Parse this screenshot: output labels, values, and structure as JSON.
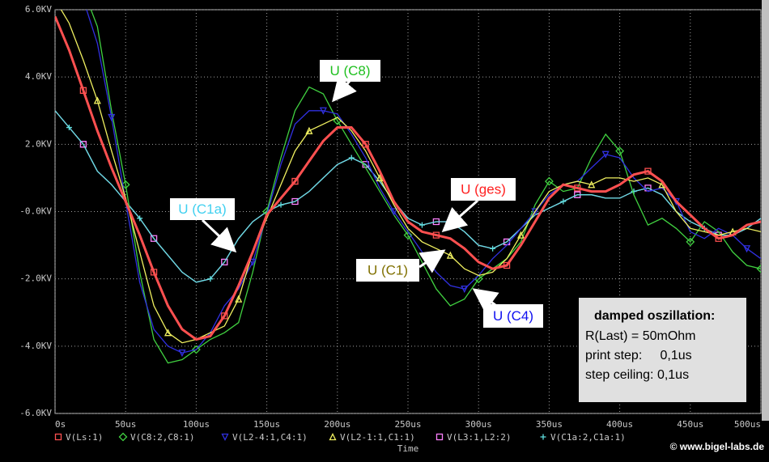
{
  "chart_data": {
    "type": "line",
    "x_label": "Time",
    "x": [
      0,
      10,
      20,
      30,
      40,
      50,
      60,
      70,
      80,
      90,
      100,
      110,
      120,
      130,
      140,
      150,
      160,
      170,
      180,
      190,
      200,
      210,
      220,
      230,
      240,
      250,
      260,
      270,
      280,
      290,
      300,
      310,
      320,
      330,
      340,
      350,
      360,
      370,
      380,
      390,
      400,
      410,
      420,
      430,
      440,
      450,
      460,
      470,
      480,
      490,
      500
    ],
    "xlim": [
      0,
      500
    ],
    "xticks": [
      {
        "value": 0,
        "label": "0s"
      },
      {
        "value": 50,
        "label": "50us"
      },
      {
        "value": 100,
        "label": "100us"
      },
      {
        "value": 150,
        "label": "150us"
      },
      {
        "value": 200,
        "label": "200us"
      },
      {
        "value": 250,
        "label": "250us"
      },
      {
        "value": 300,
        "label": "300us"
      },
      {
        "value": 350,
        "label": "350us"
      },
      {
        "value": 400,
        "label": "400us"
      },
      {
        "value": 450,
        "label": "450us"
      },
      {
        "value": 500,
        "label": "500us"
      }
    ],
    "ylim": [
      -6,
      6
    ],
    "yticks": [
      {
        "value": 6,
        "label": "6.0KV"
      },
      {
        "value": 4,
        "label": "4.0KV"
      },
      {
        "value": 2,
        "label": "2.0KV"
      },
      {
        "value": 0,
        "label": "-0.0KV"
      },
      {
        "value": -2,
        "label": "-2.0KV"
      },
      {
        "value": -4,
        "label": "-4.0KV"
      },
      {
        "value": -6,
        "label": "-6.0KV"
      }
    ],
    "grid": true,
    "series": [
      {
        "name": "V(L3:1,L2:2)",
        "color": "#ff80ff",
        "marker": "square",
        "values": [
          3.0,
          2.5,
          2.0,
          1.2,
          0.8,
          0.3,
          -0.2,
          -0.8,
          -1.3,
          -1.8,
          -2.1,
          -2.0,
          -1.5,
          -0.8,
          -0.3,
          0.0,
          0.2,
          0.3,
          0.6,
          1.0,
          1.4,
          1.6,
          1.4,
          0.9,
          0.3,
          -0.2,
          -0.4,
          -0.3,
          -0.3,
          -0.6,
          -1.0,
          -1.1,
          -0.9,
          -0.5,
          -0.1,
          0.1,
          0.3,
          0.5,
          0.5,
          0.4,
          0.4,
          0.6,
          0.7,
          0.5,
          0.0,
          -0.3,
          -0.5,
          -0.7,
          -0.7,
          -0.5,
          -0.2
        ]
      },
      {
        "name": "V(C1a:2,C1a:1)",
        "color": "#60e0e0",
        "marker": "plus",
        "values": [
          3.0,
          2.5,
          2.0,
          1.2,
          0.8,
          0.3,
          -0.2,
          -0.8,
          -1.3,
          -1.8,
          -2.1,
          -2.0,
          -1.5,
          -0.8,
          -0.3,
          0.0,
          0.2,
          0.3,
          0.6,
          1.0,
          1.4,
          1.6,
          1.4,
          0.9,
          0.3,
          -0.2,
          -0.4,
          -0.3,
          -0.3,
          -0.6,
          -1.0,
          -1.1,
          -0.9,
          -0.5,
          -0.1,
          0.1,
          0.3,
          0.5,
          0.5,
          0.4,
          0.4,
          0.6,
          0.7,
          0.5,
          0.0,
          -0.3,
          -0.5,
          -0.7,
          -0.7,
          -0.5,
          -0.2
        ]
      },
      {
        "name": "V(C8:2,C8:1)",
        "color": "#40d040",
        "marker": "diamond",
        "values": [
          6.4,
          6.6,
          6.6,
          5.5,
          3.0,
          0.8,
          -1.8,
          -3.8,
          -4.5,
          -4.4,
          -4.1,
          -3.8,
          -3.6,
          -3.3,
          -1.8,
          0.0,
          1.6,
          3.0,
          3.7,
          3.5,
          2.7,
          2.0,
          1.3,
          0.6,
          -0.1,
          -0.7,
          -1.5,
          -2.3,
          -2.8,
          -2.6,
          -2.0,
          -1.7,
          -1.4,
          -0.9,
          0.2,
          0.9,
          0.6,
          0.7,
          1.6,
          2.3,
          1.8,
          0.5,
          -0.4,
          -0.2,
          -0.5,
          -0.9,
          -0.3,
          -0.6,
          -1.2,
          -1.6,
          -1.7
        ]
      },
      {
        "name": "V(L2-4:1,C4:1)",
        "color": "#3030e0",
        "marker": "tri-down",
        "values": [
          6.6,
          6.6,
          6.3,
          5.0,
          2.8,
          0.3,
          -2.1,
          -3.5,
          -4.0,
          -4.2,
          -4.1,
          -3.6,
          -2.8,
          -2.3,
          -1.5,
          -0.1,
          1.4,
          2.6,
          3.0,
          3.0,
          2.9,
          2.3,
          1.6,
          0.7,
          0.0,
          -0.6,
          -1.2,
          -1.8,
          -2.2,
          -2.3,
          -1.9,
          -1.4,
          -1.0,
          -0.5,
          0.0,
          0.5,
          0.8,
          0.9,
          1.3,
          1.7,
          1.6,
          1.0,
          0.6,
          0.7,
          0.3,
          -0.6,
          -0.8,
          -0.5,
          -0.7,
          -1.1,
          -1.4
        ]
      },
      {
        "name": "V(L2-1:1,C1:1)",
        "color": "#f0f060",
        "marker": "tri-up",
        "values": [
          6.3,
          5.6,
          4.5,
          3.3,
          1.8,
          0.4,
          -1.2,
          -2.8,
          -3.6,
          -3.9,
          -3.8,
          -3.6,
          -3.4,
          -2.6,
          -1.2,
          -0.2,
          0.8,
          1.8,
          2.4,
          2.6,
          2.8,
          2.4,
          1.8,
          1.0,
          0.2,
          -0.5,
          -0.9,
          -1.1,
          -1.3,
          -1.7,
          -1.9,
          -1.8,
          -1.4,
          -0.7,
          0.0,
          0.6,
          0.8,
          0.9,
          0.8,
          1.0,
          1.0,
          0.9,
          1.0,
          0.8,
          0.0,
          -0.5,
          -0.6,
          -0.7,
          -0.6,
          -0.5,
          -0.6
        ]
      },
      {
        "name": "V(Ls:1)",
        "color": "#ff5050",
        "marker": "square",
        "width": 3,
        "values": [
          5.8,
          4.8,
          3.6,
          2.4,
          1.3,
          0.3,
          -0.7,
          -1.8,
          -2.8,
          -3.5,
          -3.8,
          -3.7,
          -3.1,
          -2.2,
          -1.2,
          -0.1,
          0.4,
          0.9,
          1.5,
          2.1,
          2.5,
          2.5,
          2.0,
          1.2,
          0.3,
          -0.3,
          -0.6,
          -0.7,
          -0.8,
          -1.1,
          -1.5,
          -1.7,
          -1.6,
          -1.0,
          -0.3,
          0.4,
          0.8,
          0.7,
          0.6,
          0.6,
          0.8,
          1.1,
          1.2,
          0.9,
          0.3,
          -0.1,
          -0.5,
          -0.8,
          -0.7,
          -0.4,
          -0.3
        ]
      }
    ],
    "legend_order": [
      5,
      2,
      3,
      4,
      0,
      1
    ],
    "annotations": [
      {
        "text": "U (C8)",
        "color": "#20c020"
      },
      {
        "text": "U (C1a)",
        "color": "#40d0f0"
      },
      {
        "text": "U (ges)",
        "color": "#ff2020"
      },
      {
        "text": "U (C1)",
        "color": "#807000"
      },
      {
        "text": "U (C4)",
        "color": "#1010f0"
      }
    ],
    "info_box": {
      "title": "damped oszillation:",
      "lines": [
        "R(Last) = 50mOhm",
        "print step:     0,1us",
        "step ceiling: 0,1us"
      ]
    },
    "copyright": "© www.bigel-labs.de"
  }
}
